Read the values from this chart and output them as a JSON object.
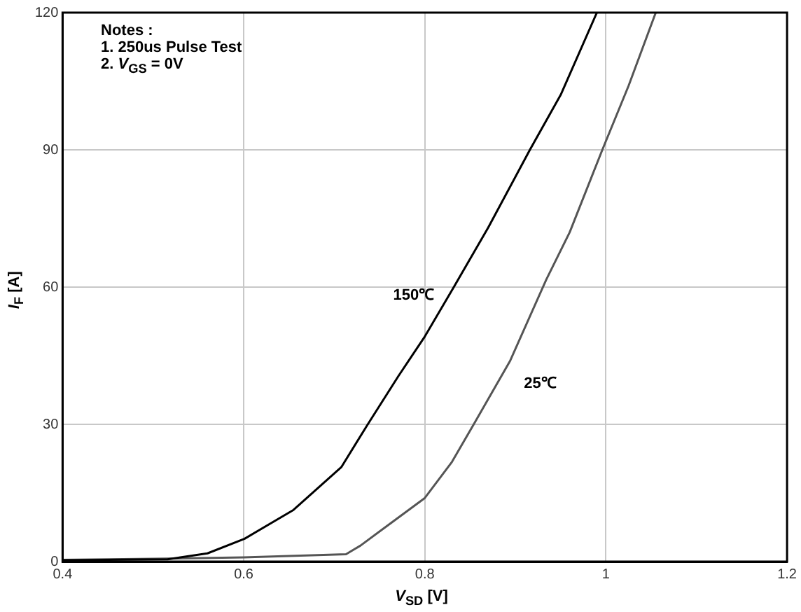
{
  "chart_data": {
    "type": "line",
    "xlabel": "V$_{SD}$ [V]",
    "ylabel": "I$_{F}$ [A]",
    "xlim": [
      0.4,
      1.2
    ],
    "xticks": [
      0.4,
      0.6,
      0.8,
      1,
      1.2
    ],
    "ylim": [
      0,
      120
    ],
    "yticks": [
      0,
      30,
      60,
      90,
      120
    ],
    "grid": true,
    "legend": false,
    "marker": "none",
    "line_style": "solid",
    "series": [
      {
        "name": "150℃",
        "color": "#000000",
        "x": [
          0.4,
          0.45,
          0.516,
          0.56,
          0.601,
          0.655,
          0.708,
          0.737,
          0.771,
          0.8,
          0.832,
          0.87,
          0.916,
          0.95,
          0.99
        ],
        "values": [
          0.3,
          0.4,
          0.5,
          1.8,
          5,
          11.3,
          20.7,
          30,
          40.6,
          49.2,
          60,
          73,
          90,
          102,
          120
        ]
      },
      {
        "name": "25℃",
        "color": "#555555",
        "x": [
          0.4,
          0.5,
          0.6,
          0.713,
          0.729,
          0.761,
          0.8,
          0.83,
          0.854,
          0.894,
          0.934,
          0.96,
          0.996,
          1.025,
          1.055
        ],
        "values": [
          0.4,
          0.6,
          0.9,
          1.6,
          3.5,
          8.2,
          13.9,
          21.8,
          30,
          43.8,
          61.6,
          72,
          90,
          104,
          120
        ]
      }
    ],
    "annotations": [
      "Notes :",
      "1. 250us Pulse Test",
      "2. V$_{GS}$ = 0V"
    ]
  }
}
